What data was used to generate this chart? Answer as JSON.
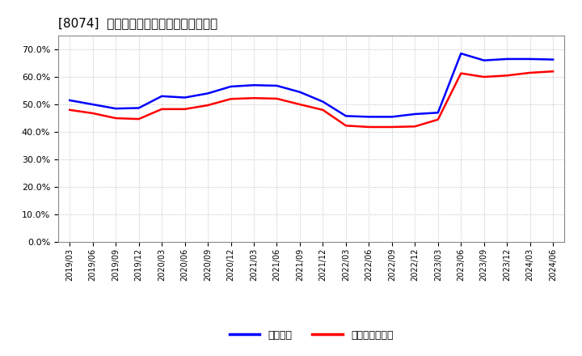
{
  "title": "[8074]  固定比率、固定長期適合率の推移",
  "line1_label": "固定比率",
  "line2_label": "固定長期適合率",
  "line1_color": "#0000FF",
  "line2_color": "#FF0000",
  "background_color": "#FFFFFF",
  "grid_color": "#BBBBBB",
  "ylim": [
    0.0,
    0.75
  ],
  "yticks": [
    0.0,
    0.1,
    0.2,
    0.3,
    0.4,
    0.5,
    0.6,
    0.7
  ],
  "dates": [
    "2019/03",
    "2019/06",
    "2019/09",
    "2019/12",
    "2020/03",
    "2020/06",
    "2020/09",
    "2020/12",
    "2021/03",
    "2021/06",
    "2021/09",
    "2021/12",
    "2022/03",
    "2022/06",
    "2022/09",
    "2022/12",
    "2023/03",
    "2023/06",
    "2023/09",
    "2023/12",
    "2024/03",
    "2024/06"
  ],
  "line1_values": [
    0.515,
    0.5,
    0.485,
    0.487,
    0.53,
    0.525,
    0.54,
    0.565,
    0.57,
    0.568,
    0.545,
    0.51,
    0.458,
    0.455,
    0.455,
    0.465,
    0.47,
    0.685,
    0.66,
    0.665,
    0.665,
    0.663
  ],
  "line2_values": [
    0.48,
    0.468,
    0.45,
    0.447,
    0.483,
    0.483,
    0.497,
    0.52,
    0.523,
    0.521,
    0.5,
    0.48,
    0.423,
    0.418,
    0.418,
    0.42,
    0.445,
    0.613,
    0.6,
    0.605,
    0.615,
    0.62
  ]
}
